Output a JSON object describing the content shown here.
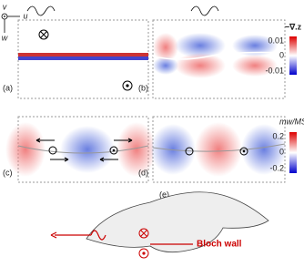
{
  "axes": {
    "v": "v",
    "u": "u",
    "w": "w"
  },
  "panels": [
    {
      "label": "(a)"
    },
    {
      "label": "(b)"
    },
    {
      "label": "(c)"
    },
    {
      "label": "(d)"
    },
    {
      "label": "(e)"
    }
  ],
  "colorbars": [
    {
      "title": "−∇.z",
      "ticks": [
        "0.01",
        "0",
        "-0.01"
      ]
    },
    {
      "title": "mw/MS",
      "ticks": [
        "0.2",
        "0",
        "-0.2"
      ]
    }
  ],
  "annotation": "Bloch wall"
}
